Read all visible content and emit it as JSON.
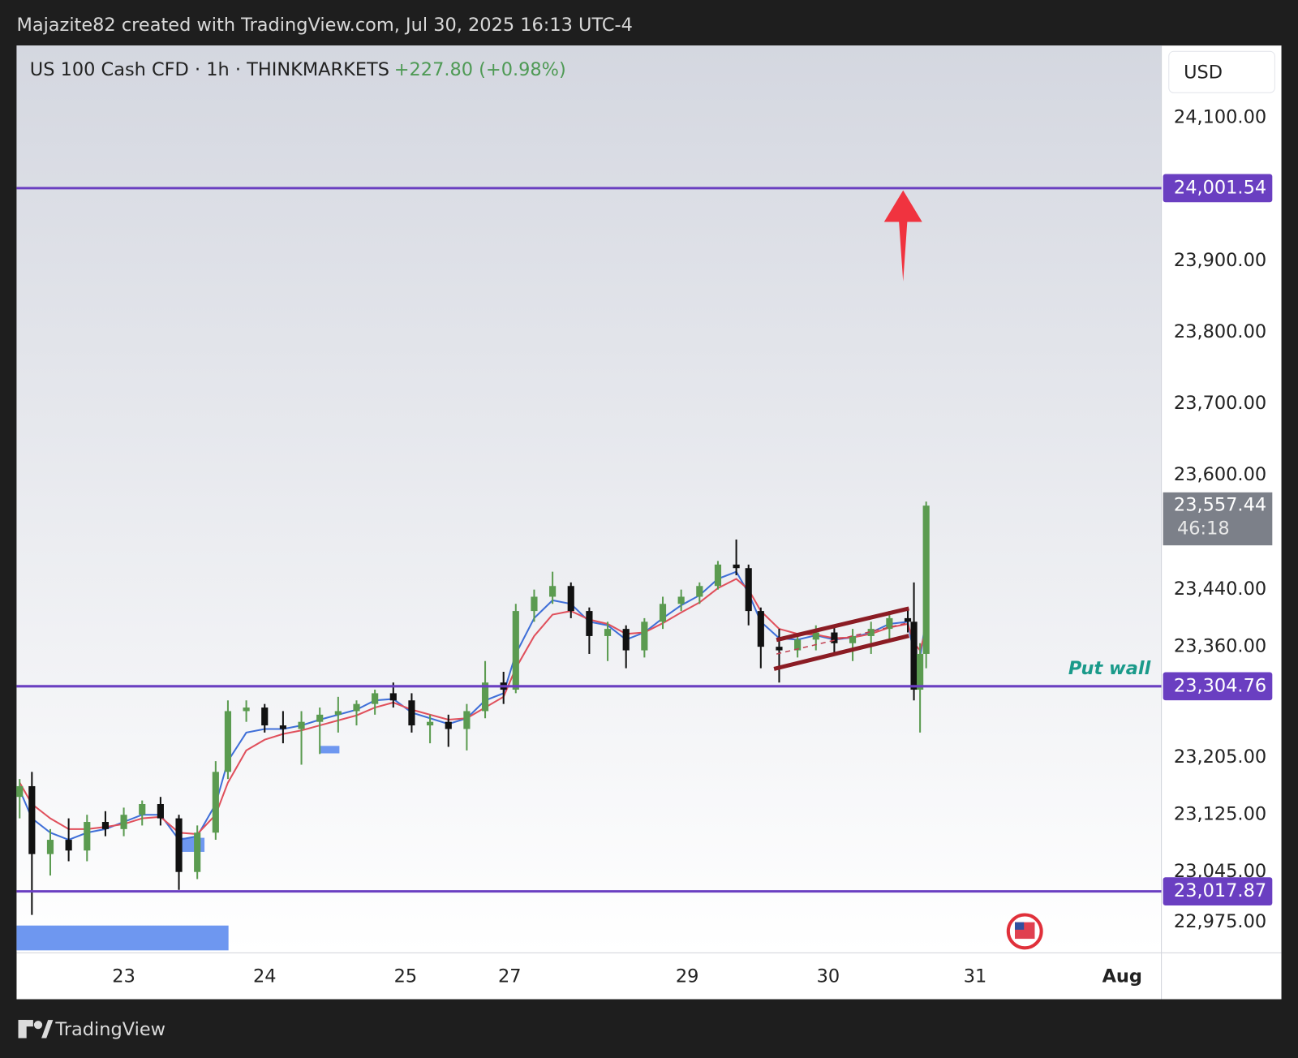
{
  "header": {
    "credit": "Majazite82 created with TradingView.com, Jul 30, 2025 16:13 UTC-4"
  },
  "footer": {
    "brand": "TradingView"
  },
  "chart_data": {
    "type": "candlestick",
    "symbol": "US 100 Cash CFD · 1h · THINKMARKETS",
    "change": "+227.80 (+0.98%)",
    "currency": "USD",
    "annotation": "Put wall",
    "up_color": "#5b9b50",
    "down_color": "#111111",
    "level_color": "#6a3fc1",
    "x": [
      0,
      2,
      5,
      8,
      11,
      14,
      17,
      20,
      23,
      26,
      29,
      32,
      34,
      37,
      40,
      43,
      46,
      49,
      52,
      55,
      58,
      61,
      64,
      67,
      70,
      73,
      76,
      79,
      81,
      84,
      87,
      90,
      93,
      96,
      99,
      102,
      105,
      108,
      111,
      114,
      117,
      119,
      121,
      124,
      127,
      130,
      133,
      136,
      139,
      142,
      145,
      146,
      147,
      148
    ],
    "open": [
      23150,
      23165,
      23070,
      23090,
      23075,
      23115,
      23105,
      23125,
      23140,
      23120,
      23045,
      23100,
      23185,
      23270,
      23275,
      23250,
      23245,
      23255,
      23265,
      23270,
      23280,
      23295,
      23285,
      23250,
      23255,
      23245,
      23270,
      23310,
      23300,
      23410,
      23430,
      23445,
      23410,
      23375,
      23385,
      23355,
      23395,
      23420,
      23430,
      23445,
      23475,
      23470,
      23410,
      23360,
      23355,
      23370,
      23380,
      23365,
      23375,
      23385,
      23400,
      23395,
      23300,
      23350
    ],
    "high": [
      23175,
      23185,
      23105,
      23120,
      23125,
      23130,
      23135,
      23145,
      23150,
      23125,
      23110,
      23200,
      23285,
      23285,
      23280,
      23270,
      23270,
      23275,
      23290,
      23285,
      23300,
      23310,
      23295,
      23265,
      23265,
      23280,
      23340,
      23325,
      23420,
      23440,
      23465,
      23450,
      23415,
      23395,
      23390,
      23400,
      23430,
      23440,
      23450,
      23480,
      23510,
      23475,
      23415,
      23385,
      23375,
      23390,
      23390,
      23385,
      23395,
      23410,
      23415,
      23450,
      23365,
      23563
    ],
    "low": [
      23120,
      22985,
      23040,
      23060,
      23060,
      23095,
      23095,
      23110,
      23110,
      23020,
      23035,
      23090,
      23175,
      23255,
      23240,
      23225,
      23195,
      23210,
      23240,
      23250,
      23265,
      23275,
      23240,
      23225,
      23220,
      23215,
      23260,
      23280,
      23295,
      23395,
      23420,
      23400,
      23350,
      23340,
      23330,
      23345,
      23385,
      23410,
      23420,
      23440,
      23460,
      23390,
      23330,
      23310,
      23345,
      23355,
      23350,
      23340,
      23350,
      23370,
      23380,
      23285,
      23240,
      23330
    ],
    "close": [
      23165,
      23070,
      23090,
      23075,
      23115,
      23105,
      23125,
      23140,
      23120,
      23045,
      23100,
      23185,
      23270,
      23275,
      23250,
      23245,
      23255,
      23265,
      23270,
      23280,
      23295,
      23285,
      23250,
      23255,
      23245,
      23270,
      23310,
      23300,
      23410,
      23430,
      23445,
      23410,
      23375,
      23385,
      23355,
      23395,
      23420,
      23430,
      23445,
      23475,
      23470,
      23410,
      23360,
      23355,
      23370,
      23380,
      23365,
      23375,
      23385,
      23400,
      23395,
      23300,
      23350,
      23557.44
    ],
    "lines": [
      {
        "color": "#3f6fd8",
        "values": [
          23160,
          23120,
          23100,
          23090,
          23100,
          23105,
          23115,
          23125,
          23125,
          23090,
          23095,
          23140,
          23200,
          23240,
          23245,
          23245,
          23250,
          23258,
          23265,
          23272,
          23285,
          23287,
          23268,
          23260,
          23252,
          23260,
          23285,
          23295,
          23350,
          23400,
          23425,
          23420,
          23395,
          23390,
          23370,
          23380,
          23400,
          23418,
          23432,
          23455,
          23465,
          23435,
          23395,
          23372,
          23370,
          23376,
          23370,
          23373,
          23380,
          23392,
          23395,
          23350,
          23345,
          23400
        ]
      },
      {
        "color": "#e0505c",
        "values": [
          23170,
          23140,
          23120,
          23105,
          23105,
          23108,
          23112,
          23120,
          23122,
          23100,
          23098,
          23125,
          23170,
          23215,
          23230,
          23238,
          23243,
          23250,
          23257,
          23264,
          23275,
          23282,
          23272,
          23265,
          23258,
          23260,
          23275,
          23290,
          23330,
          23375,
          23405,
          23410,
          23398,
          23392,
          23378,
          23380,
          23393,
          23408,
          23422,
          23442,
          23455,
          23440,
          23410,
          23385,
          23378,
          23377,
          23372,
          23373,
          23378,
          23387,
          23392,
          23365,
          23355,
          23385
        ]
      }
    ],
    "levels": [
      {
        "value": 24001.54,
        "label": "24,001.54"
      },
      {
        "value": 23304.76,
        "label": "23,304.76"
      },
      {
        "value": 23017.87,
        "label": "23,017.87"
      }
    ],
    "last_price": {
      "value": 23557.44,
      "label": "23,557.44"
    },
    "countdown": "46:18",
    "xlim": [
      -0.5,
      186.4
    ],
    "xticks": [
      {
        "value": 17,
        "label": "23"
      },
      {
        "value": 40,
        "label": "24"
      },
      {
        "value": 63,
        "label": "25"
      },
      {
        "value": 80,
        "label": "27"
      },
      {
        "value": 109,
        "label": "29"
      },
      {
        "value": 132,
        "label": "30"
      },
      {
        "value": 156,
        "label": "31"
      },
      {
        "value": 180,
        "label": "Aug"
      }
    ],
    "ylim": [
      22933,
      24201
    ],
    "yticks": [
      {
        "value": 24100,
        "label": "24,100.00"
      },
      {
        "value": 23900,
        "label": "23,900.00"
      },
      {
        "value": 23800,
        "label": "23,800.00"
      },
      {
        "value": 23700,
        "label": "23,700.00"
      },
      {
        "value": 23600,
        "label": "23,600.00"
      },
      {
        "value": 23440,
        "label": "23,440.00"
      },
      {
        "value": 23360,
        "label": "23,360.00"
      },
      {
        "value": 23205,
        "label": "23,205.00"
      },
      {
        "value": 23125,
        "label": "23,125.00"
      },
      {
        "value": 23045,
        "label": "23,045.00"
      },
      {
        "value": 22975,
        "label": "22,975.00"
      }
    ]
  }
}
